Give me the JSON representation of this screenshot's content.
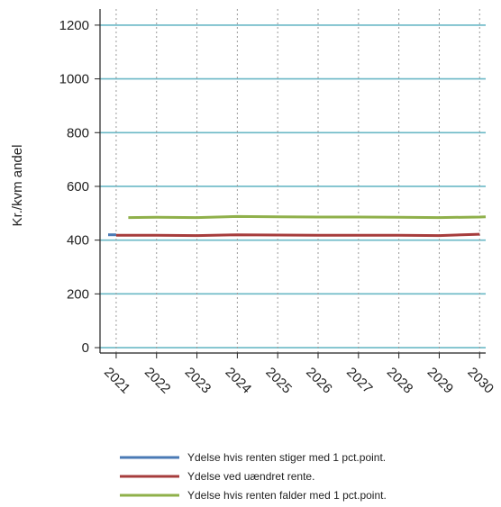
{
  "chart_data": {
    "type": "line",
    "title": "",
    "xlabel": "",
    "ylabel": "Kr./kvm andel",
    "x": [
      2021,
      2022,
      2023,
      2024,
      2025,
      2026,
      2027,
      2028,
      2029,
      2030
    ],
    "x_tick_labels": [
      "2021",
      "2022",
      "2023",
      "2024",
      "2025",
      "2026",
      "2027",
      "2028",
      "2029",
      "2030"
    ],
    "xlim": [
      2020.6,
      2030.15
    ],
    "ylim": [
      -20,
      1260
    ],
    "y_ticks": [
      0,
      200,
      400,
      600,
      800,
      1000,
      1200
    ],
    "y_tick_labels": [
      "0",
      "200",
      "400",
      "600",
      "800",
      "1000",
      "1200"
    ],
    "grid": {
      "horizontal": true,
      "horizontal_color": "#6ab8c6",
      "vertical": true,
      "vertical_style": "dotted"
    },
    "legend_position": "bottom",
    "series": [
      {
        "name": "Ydelse hvis renten stiger med 1 pct.point.",
        "color": "#4a7ab5",
        "points": [
          [
            2020.8,
            420
          ],
          [
            2021.0,
            420
          ]
        ]
      },
      {
        "name": "Ydelse ved uændret rente.",
        "color": "#a63c3c",
        "points": [
          [
            2021.0,
            418
          ],
          [
            2022,
            418
          ],
          [
            2023,
            417
          ],
          [
            2024,
            420
          ],
          [
            2025,
            419
          ],
          [
            2026,
            418
          ],
          [
            2027,
            418
          ],
          [
            2028,
            418
          ],
          [
            2029,
            417
          ],
          [
            2030,
            422
          ]
        ]
      },
      {
        "name": "Ydelse hvis renten falder med 1 pct.point.",
        "color": "#8fb04a",
        "points": [
          [
            2021.3,
            484
          ],
          [
            2022,
            485
          ],
          [
            2023,
            484
          ],
          [
            2024,
            488
          ],
          [
            2025,
            487
          ],
          [
            2026,
            486
          ],
          [
            2027,
            486
          ],
          [
            2028,
            485
          ],
          [
            2029,
            484
          ],
          [
            2030,
            486
          ],
          [
            2030.15,
            487
          ]
        ]
      }
    ]
  }
}
